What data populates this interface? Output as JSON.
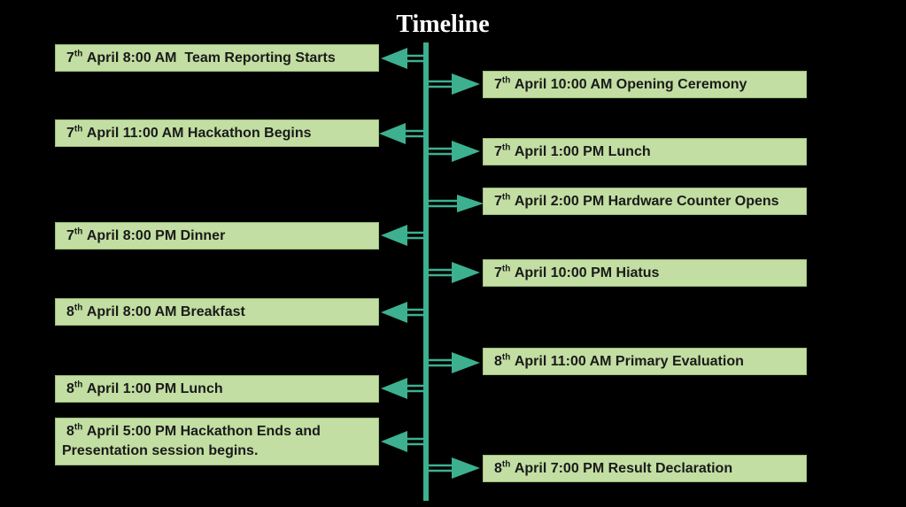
{
  "title": "Timeline",
  "colors": {
    "background": "#000000",
    "axis": "#3db08f",
    "box_fill": "#c2dea2",
    "text": "#1a1a1a"
  },
  "events": [
    {
      "day": "7",
      "ord": "th",
      "text": "April 8:00 AM  Team Reporting Starts"
    },
    {
      "day": "7",
      "ord": "th",
      "text": "April 10:00 AM Opening Ceremony"
    },
    {
      "day": "7",
      "ord": "th",
      "text": "April 11:00 AM Hackathon Begins"
    },
    {
      "day": "7",
      "ord": "th",
      "text": "April 1:00 PM Lunch"
    },
    {
      "day": "7",
      "ord": "th",
      "text": "April 2:00 PM Hardware Counter Opens"
    },
    {
      "day": "7",
      "ord": "th",
      "text": "April 8:00 PM Dinner"
    },
    {
      "day": "7",
      "ord": "th",
      "text": "April 10:00 PM Hiatus"
    },
    {
      "day": "8",
      "ord": "th",
      "text": "April 8:00 AM Breakfast"
    },
    {
      "day": "8",
      "ord": "th",
      "text": "April 11:00 AM Primary Evaluation"
    },
    {
      "day": "8",
      "ord": "th",
      "text": "April 1:00 PM Lunch"
    },
    {
      "day": "8",
      "ord": "th",
      "text": "April 5:00 PM Hackathon Ends and",
      "text2": "Presentation session begins."
    },
    {
      "day": "8",
      "ord": "th",
      "text": "April 7:00 PM Result Declaration"
    }
  ]
}
